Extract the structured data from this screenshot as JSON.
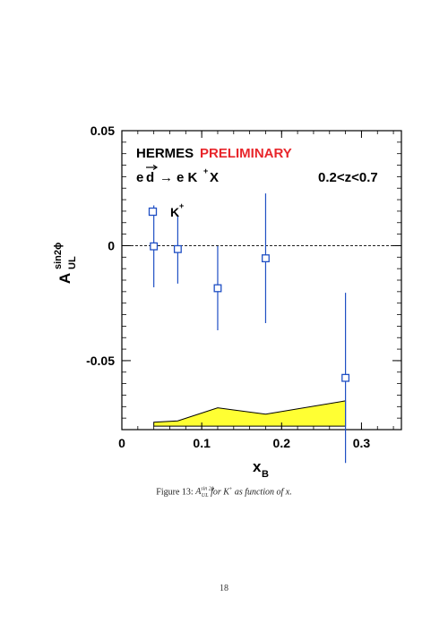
{
  "chart_data": {
    "type": "scatter",
    "collaboration": "HERMES",
    "status": "PRELIMINARY",
    "reaction": {
      "e": "e",
      "d": "d",
      "arrow": "→",
      "k": "e K",
      "sup": "+",
      "x": "X"
    },
    "z_range": "0.2<z<0.7",
    "ylabel": {
      "base": "A",
      "sup": "sin2ϕ",
      "sub": "UL"
    },
    "xlabel": {
      "base": "x",
      "sub": "B"
    },
    "xlim": [
      0,
      0.35
    ],
    "ylim": [
      -0.08,
      0.05
    ],
    "xticks": [
      0,
      0.1,
      0.2,
      0.3
    ],
    "xtick_labels": [
      "0",
      "0.1",
      "0.2",
      "0.3"
    ],
    "yticks": [
      -0.05,
      0,
      0.05
    ],
    "ytick_labels": [
      "-0.05",
      "0",
      "0.05"
    ],
    "zero_line": true,
    "legend": {
      "label": "K",
      "sup": "+",
      "placement": "upper-left"
    },
    "series": [
      {
        "name": "K+",
        "marker": "open-square",
        "x": [
          0.04,
          0.07,
          0.12,
          0.18,
          0.28
        ],
        "y": [
          -0.0003,
          -0.0015,
          -0.0185,
          -0.0055,
          -0.0575
        ],
        "yerr": [
          0.0178,
          0.015,
          0.0183,
          0.0282,
          0.037
        ]
      }
    ],
    "systematic_band": {
      "x": [
        0.04,
        0.07,
        0.12,
        0.18,
        0.28
      ],
      "y": [
        -0.0768,
        -0.0762,
        -0.0705,
        -0.0733,
        -0.0675
      ],
      "baseline": -0.0785
    },
    "colors": {
      "points": "#1f4fc4",
      "band": "#ffff33",
      "preliminary": "#e8262b"
    }
  },
  "caption": {
    "figure": "Figure 13:",
    "symbol": "A",
    "symbol_sup": "sin 2ϕ",
    "symbol_sub": "UL",
    "text": "for K",
    "text_sup": "+",
    "text_end": "as function of x."
  },
  "page_number": "18"
}
